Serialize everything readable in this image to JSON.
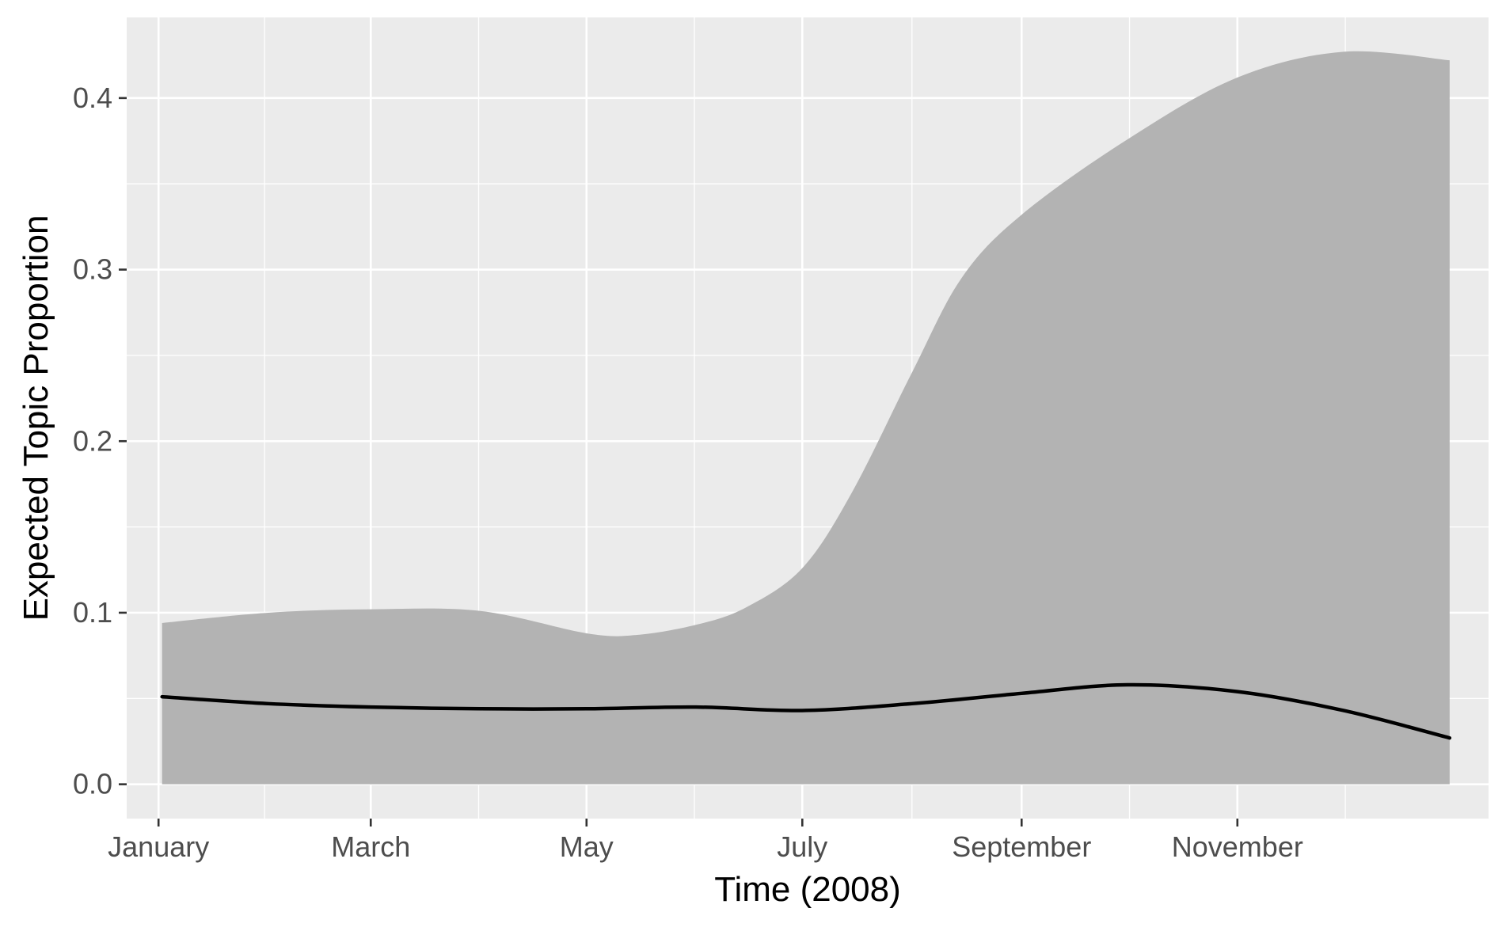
{
  "chart_data": {
    "type": "area",
    "title": "",
    "xlabel": "Time (2008)",
    "ylabel": "Expected Topic Proportion",
    "x_tick_labels": [
      "January",
      "March",
      "May",
      "July",
      "September",
      "November"
    ],
    "x_tick_dates": [
      "2008-01-01",
      "2008-03-01",
      "2008-05-01",
      "2008-07-01",
      "2008-09-01",
      "2008-11-01"
    ],
    "x_range": [
      "2007-12-23",
      "2009-01-11"
    ],
    "y_ticks": [
      0.0,
      0.1,
      0.2,
      0.3,
      0.4
    ],
    "y_tick_labels": [
      "0.0",
      "0.1",
      "0.2",
      "0.3",
      "0.4"
    ],
    "ylim": [
      -0.02,
      0.447
    ],
    "grid": true,
    "colors": {
      "panel_background": "#ebebeb",
      "grid_line": "#ffffff",
      "ribbon_fill": "#b3b3b3",
      "line": "#000000"
    },
    "series": [
      {
        "kind": "ribbon",
        "x": [
          "2008-01-02",
          "2008-02-01",
          "2008-03-01",
          "2008-04-01",
          "2008-05-01",
          "2008-05-15",
          "2008-06-01",
          "2008-06-15",
          "2008-07-01",
          "2008-07-15",
          "2008-08-01",
          "2008-08-15",
          "2008-09-01",
          "2008-10-01",
          "2008-11-01",
          "2008-12-01",
          "2008-12-31"
        ],
        "lower": [
          0,
          0,
          0,
          0,
          0,
          0,
          0,
          0,
          0,
          0,
          0,
          0,
          0,
          0,
          0,
          0,
          0
        ],
        "upper": [
          0.094,
          0.1,
          0.102,
          0.101,
          0.088,
          0.087,
          0.093,
          0.103,
          0.126,
          0.17,
          0.24,
          0.295,
          0.332,
          0.376,
          0.412,
          0.427,
          0.422
        ]
      },
      {
        "kind": "line",
        "x": [
          "2008-01-02",
          "2008-02-01",
          "2008-03-01",
          "2008-04-01",
          "2008-05-01",
          "2008-06-01",
          "2008-07-01",
          "2008-08-01",
          "2008-09-01",
          "2008-10-01",
          "2008-11-01",
          "2008-12-01",
          "2008-12-31"
        ],
        "y": [
          0.051,
          0.047,
          0.045,
          0.044,
          0.044,
          0.045,
          0.043,
          0.047,
          0.053,
          0.058,
          0.054,
          0.043,
          0.027
        ]
      }
    ]
  }
}
